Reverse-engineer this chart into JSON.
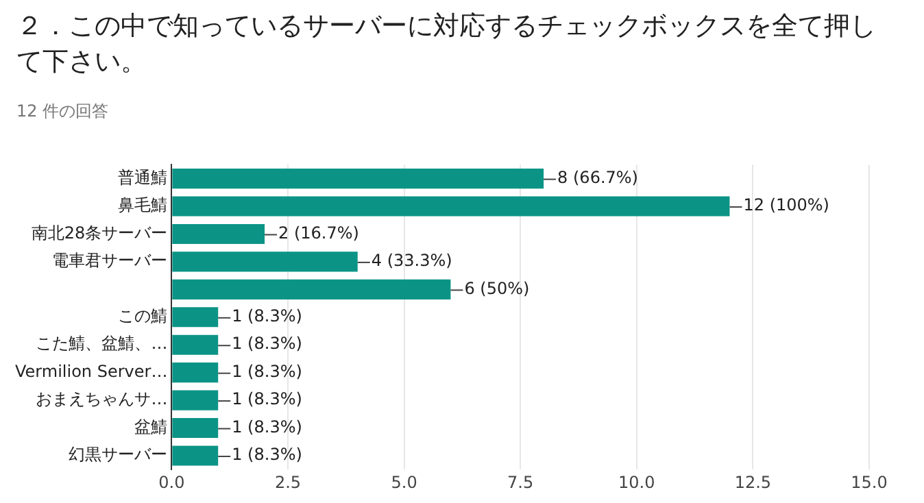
{
  "chart_data": {
    "type": "bar",
    "orientation": "horizontal",
    "title": "２．この中で知っているサーバーに対応するチェックボックスを全て押して下さい。",
    "subtitle": "12 件の回答",
    "categories": [
      "普通鯖",
      "鼻毛鯖",
      "南北28条サーバー",
      "電車君サーバー",
      null,
      "この鯖",
      "こた鯖、盆鯖、…",
      "Vermilion Server…",
      "おまえちゃんサ…",
      "盆鯖",
      "幻黒サーバー"
    ],
    "values": [
      8,
      12,
      2,
      4,
      6,
      1,
      1,
      1,
      1,
      1,
      1
    ],
    "value_labels": [
      "8 (66.7%)",
      "12 (100%)",
      "2 (16.7%)",
      "4 (33.3%)",
      "6 (50%)",
      "1 (8.3%)",
      "1 (8.3%)",
      "1 (8.3%)",
      "1 (8.3%)",
      "1 (8.3%)",
      "1 (8.3%)"
    ],
    "color": "#0b9486",
    "xlim": [
      0,
      15
    ],
    "xticks": [
      {
        "value": 0,
        "label": "0.0"
      },
      {
        "value": 2.5,
        "label": "2.5"
      },
      {
        "value": 5,
        "label": "5.0"
      },
      {
        "value": 7.5,
        "label": "7.5"
      },
      {
        "value": 10,
        "label": "10.0"
      },
      {
        "value": 12.5,
        "label": "12.5"
      },
      {
        "value": 15,
        "label": "15.0"
      }
    ],
    "grid": "x"
  }
}
